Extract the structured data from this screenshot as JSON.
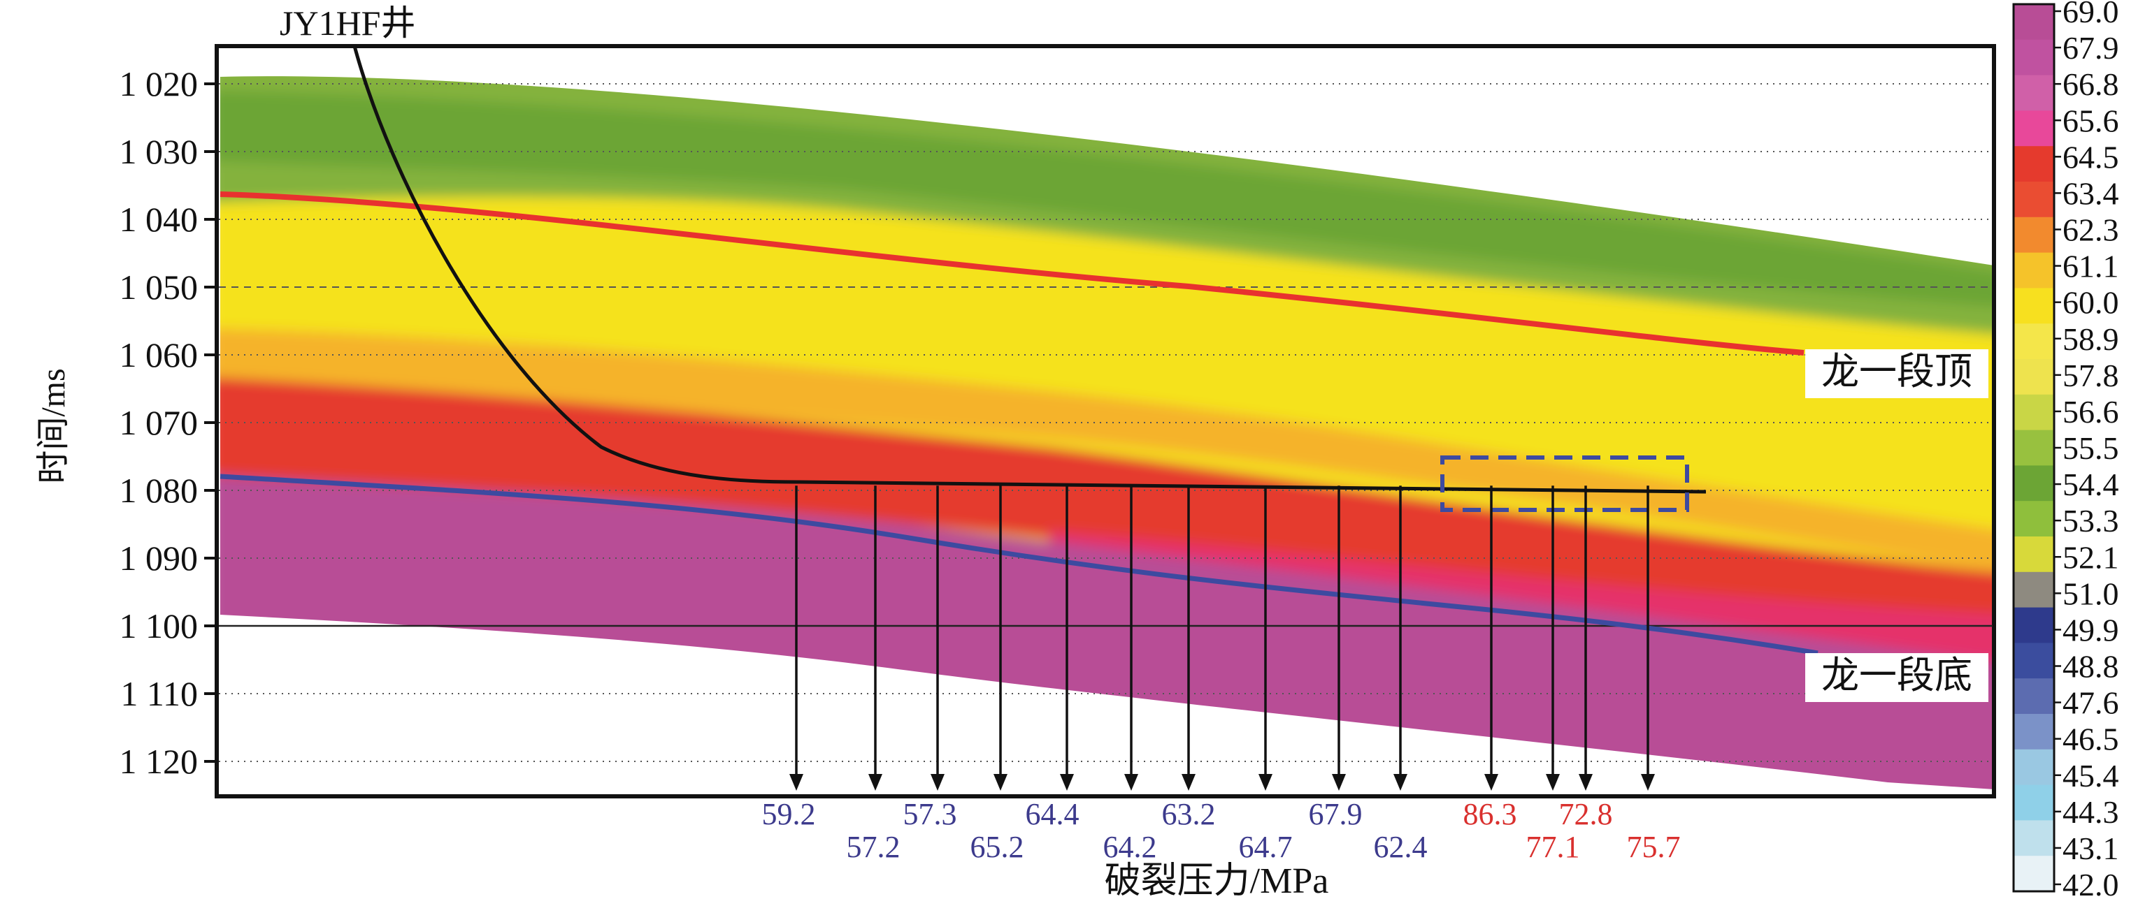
{
  "chart_data": {
    "type": "heatmap",
    "title": "",
    "well_label": "JY1HF井",
    "ylabel": "时间/ms",
    "xlabel": "破裂压力/MPa",
    "y_axis": {
      "range": [
        1015,
        1125
      ],
      "ticks": [
        1020,
        1030,
        1040,
        1050,
        1060,
        1070,
        1080,
        1090,
        1100,
        1110,
        1120
      ],
      "tick_labels": [
        "1 020",
        "1 030",
        "1 040",
        "1 050",
        "1 060",
        "1 070",
        "1 080",
        "1 090",
        "1 100",
        "1 110",
        "1 120"
      ]
    },
    "grid": "dotted horizontal",
    "horizon_top": {
      "label": "龙一段顶",
      "color": "#e8312f"
    },
    "horizon_bottom": {
      "label": "龙一段底",
      "color": "#3d4aa0"
    },
    "wellbore_time_ms": 1079,
    "measurements": {
      "unit": "MPa",
      "upper_row": [
        "59.2",
        "57.3",
        "64.4",
        "63.2",
        "67.9",
        "86.3",
        "72.8"
      ],
      "lower_row": [
        "57.2",
        "65.2",
        "64.2",
        "64.7",
        "62.4",
        "77.1",
        "75.7"
      ],
      "arrow_order": [
        "59.2",
        "57.2",
        "57.3",
        "65.2",
        "64.4",
        "64.2",
        "63.2",
        "64.7",
        "67.9",
        "62.4",
        "86.3",
        "77.1",
        "72.8",
        "75.7"
      ],
      "normal_color": "#3c3a8c",
      "high_color": "#d9302e",
      "high_values": [
        "86.3",
        "77.1",
        "72.8",
        "75.7"
      ]
    },
    "colorbar": {
      "unit": "MPa",
      "tick_labels": [
        "69.0",
        "67.9",
        "66.8",
        "65.6",
        "64.5",
        "63.4",
        "62.3",
        "61.1",
        "60.0",
        "58.9",
        "57.8",
        "56.6",
        "55.5",
        "54.4",
        "53.3",
        "52.1",
        "51.0",
        "49.9",
        "48.8",
        "47.6",
        "46.5",
        "45.4",
        "44.3",
        "43.1",
        "42.0"
      ],
      "range": [
        42.0,
        69.0
      ]
    }
  }
}
